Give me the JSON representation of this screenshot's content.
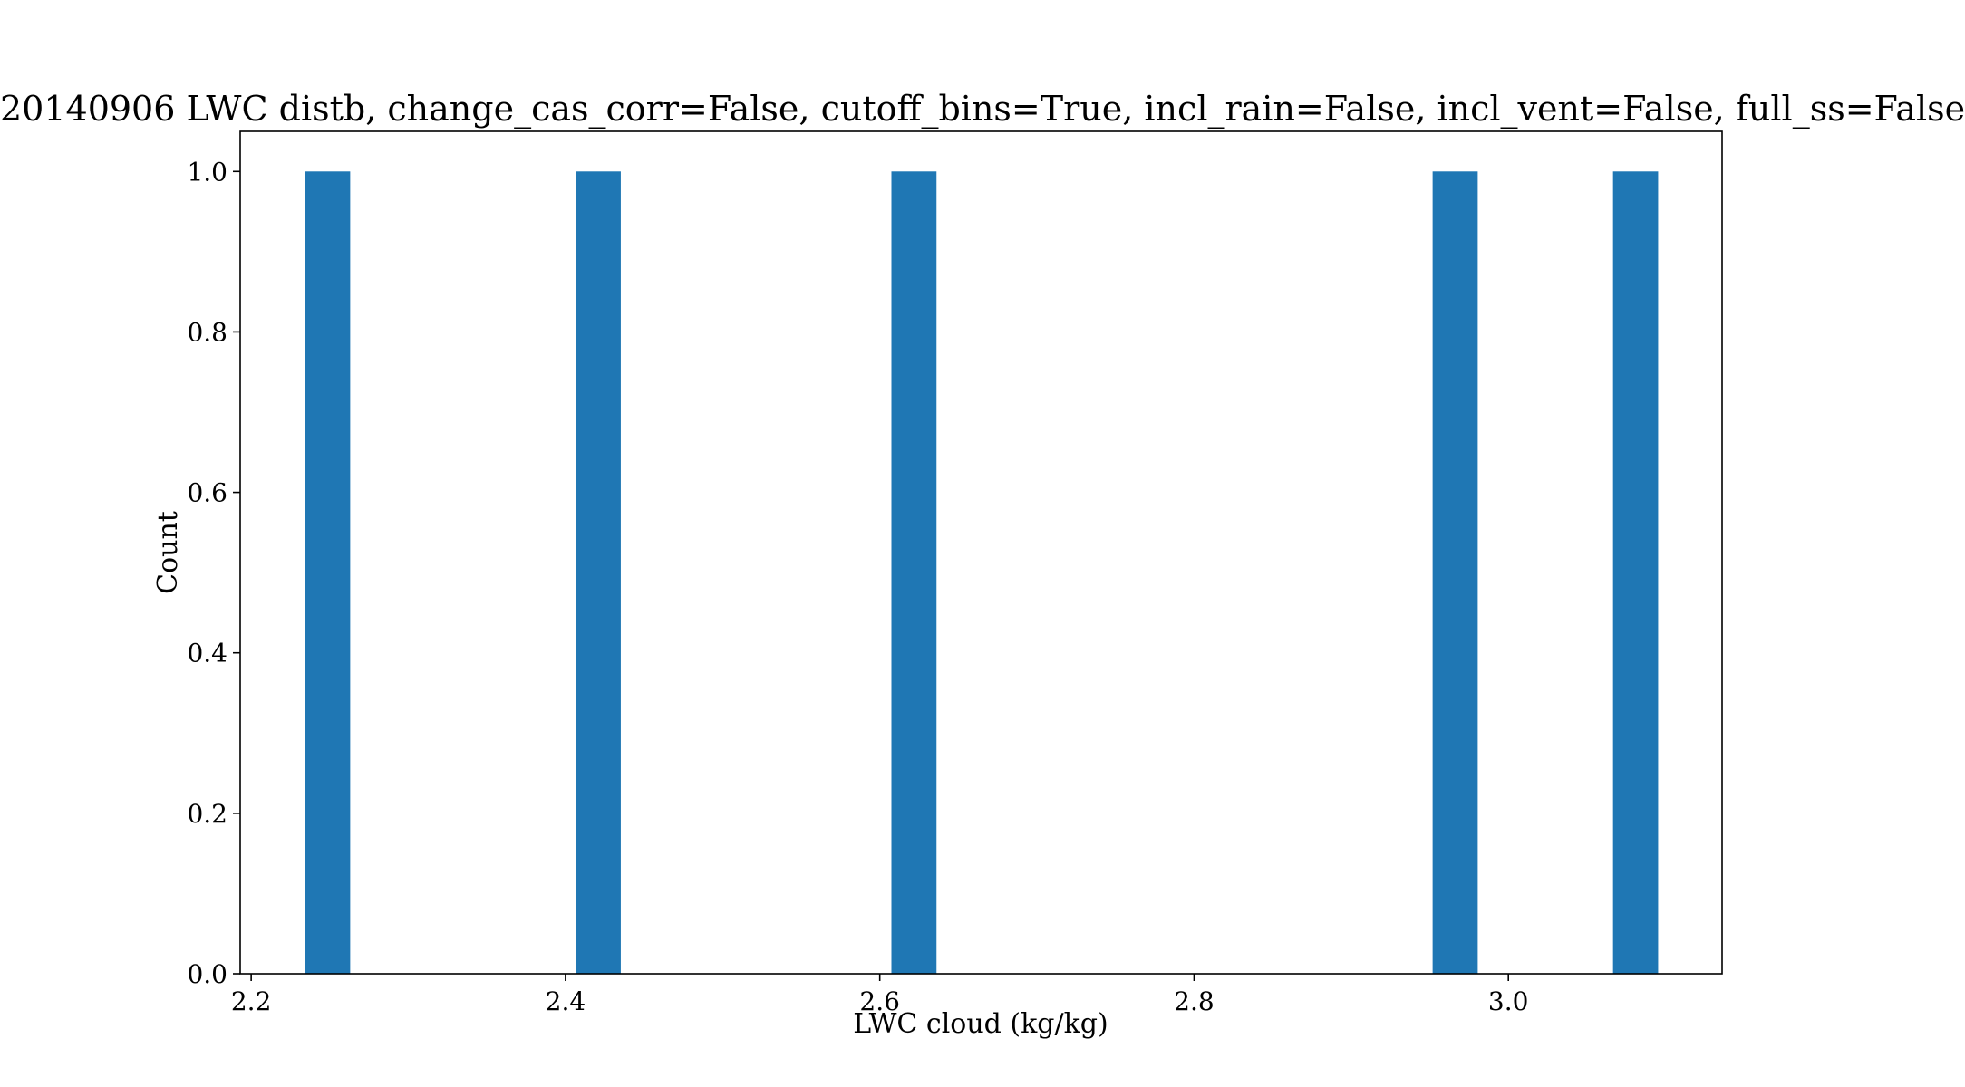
{
  "chart_data": {
    "type": "bar",
    "title": "20140906 LWC distb, change_cas_corr=False, cutoff_bins=True, incl_rain=False, incl_vent=False, full_ss=False",
    "xlabel": "LWC cloud (kg/kg)",
    "ylabel": "Count",
    "xlim": [
      2.193,
      3.136
    ],
    "ylim": [
      0,
      1.05
    ],
    "x_ticks": [
      2.2,
      2.4,
      2.6,
      2.8,
      3.0
    ],
    "x_tick_labels": [
      "2.2",
      "2.4",
      "2.6",
      "2.8",
      "3.0"
    ],
    "y_ticks": [
      0,
      0.2,
      0.4,
      0.6,
      0.8,
      1.0
    ],
    "y_tick_labels": [
      "0.0",
      "0.2",
      "0.4",
      "0.6",
      "0.8",
      "1.0"
    ],
    "bin_width": 0.0287,
    "bars": [
      {
        "x_start": 2.2343,
        "count": 1
      },
      {
        "x_start": 2.4065,
        "count": 1
      },
      {
        "x_start": 2.6074,
        "count": 1
      },
      {
        "x_start": 2.9518,
        "count": 1
      },
      {
        "x_start": 3.0666,
        "count": 1
      }
    ],
    "bar_color": "#1f77b4",
    "grid": false,
    "legend": "none"
  }
}
